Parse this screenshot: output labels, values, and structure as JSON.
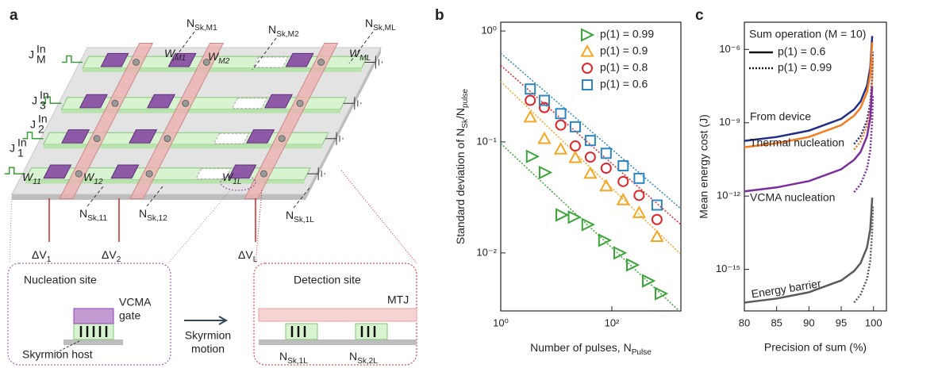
{
  "panel_labels": [
    "a",
    "b",
    "c"
  ],
  "diagram": {
    "top_labels": [
      [
        "N",
        "Sk,M1"
      ],
      [
        "N",
        "Sk,M2"
      ],
      [
        "N",
        "Sk,ML"
      ]
    ],
    "weights": [
      [
        "W",
        "M1"
      ],
      [
        "W",
        "M2"
      ],
      [
        "W",
        "ML"
      ],
      [
        "W",
        "11"
      ],
      [
        "W",
        "12"
      ],
      [
        "W",
        "1L"
      ]
    ],
    "inputs": [
      {
        "base": "J",
        "sub": "M",
        "sup": "In"
      },
      {
        "base": "J",
        "sub": "3",
        "sup": "In"
      },
      {
        "base": "J",
        "sub": "2",
        "sup": "In"
      },
      {
        "base": "J",
        "sub": "1",
        "sup": "In"
      }
    ],
    "bottom_labels": [
      [
        "N",
        "Sk,11"
      ],
      [
        "N",
        "Sk,12"
      ],
      [
        "N",
        "Sk,1L"
      ]
    ],
    "voltages": [
      [
        "ΔV",
        "1"
      ],
      [
        "ΔV",
        "2"
      ],
      [
        "ΔV",
        "L"
      ]
    ],
    "nucleation": {
      "title": "Nucleation site",
      "gate": [
        "VCMA",
        "gate"
      ],
      "host": "Skyrmion host"
    },
    "motion": [
      "Skyrmion",
      "motion"
    ],
    "detection": {
      "title": "Detection site",
      "mtj": "MTJ",
      "labels": [
        [
          "N",
          "Sk,1L"
        ],
        [
          "N",
          "Sk,2L"
        ]
      ]
    }
  },
  "chart_data": [
    {
      "type": "scatter",
      "xlabel": [
        "Number of pulses, N",
        "Pulse"
      ],
      "ylabel": [
        "Standard deviation of N",
        "Sk",
        "/N",
        "pulse"
      ],
      "log_x": true,
      "log_y": true,
      "xlim": [
        1,
        1750
      ],
      "ylim": [
        0.003,
        1.2
      ],
      "xticks": [
        {
          "value": 1,
          "label": "10⁰"
        },
        {
          "value": 100,
          "label": "10²"
        }
      ],
      "yticks": [
        {
          "value": 1,
          "label": "10⁰"
        },
        {
          "value": 0.1,
          "label": "10⁻¹"
        },
        {
          "value": 0.01,
          "label": "10⁻²"
        }
      ],
      "fit_x": [
        1,
        1750
      ],
      "series": [
        {
          "name": "p(1) = 0.99",
          "color": "#3aa538",
          "marker": "triangle-right",
          "x": [
            3.7,
            6.3,
            12.6,
            21,
            37,
            74,
            139,
            235,
            455,
            770
          ],
          "values": [
            0.074,
            0.053,
            0.022,
            0.021,
            0.018,
            0.013,
            0.01,
            0.0078,
            0.0056,
            0.0043
          ],
          "fit_values": [
            0.097,
            0.0029
          ]
        },
        {
          "name": "p(1) = 0.9",
          "color": "#f5a623",
          "marker": "triangle-up",
          "x": [
            3.4,
            6.1,
            12,
            22,
            41,
            79,
            160,
            310,
            650
          ],
          "values": [
            0.167,
            0.107,
            0.086,
            0.072,
            0.052,
            0.04,
            0.03,
            0.023,
            0.014
          ],
          "fit_values": [
            0.35,
            0.0097
          ]
        },
        {
          "name": "p(1) = 0.8",
          "color": "#e0252b",
          "marker": "circle",
          "x": [
            3.4,
            6.1,
            12,
            22,
            41,
            79,
            160,
            310,
            650
          ],
          "values": [
            0.237,
            0.204,
            0.142,
            0.092,
            0.073,
            0.058,
            0.044,
            0.033,
            0.02
          ],
          "fit_values": [
            0.49,
            0.018
          ]
        },
        {
          "name": "p(1) = 0.6",
          "color": "#2e86c1",
          "marker": "square",
          "x": [
            3.4,
            6.1,
            12,
            22,
            41,
            79,
            160,
            310,
            650
          ],
          "values": [
            0.3,
            0.237,
            0.18,
            0.137,
            0.103,
            0.079,
            0.061,
            0.047,
            0.027
          ],
          "fit_values": [
            0.63,
            0.025
          ]
        }
      ]
    },
    {
      "type": "line",
      "xlabel": "Precision of sum (%)",
      "ylabel": "Mean energy cost (J)",
      "log_y": true,
      "xlim": [
        80,
        102
      ],
      "ylim": [
        2e-17,
        1.3e-05
      ],
      "xticks": [
        80,
        85,
        90,
        95,
        100
      ],
      "yticks": [
        {
          "value": 1e-06,
          "label": "10⁻⁶"
        },
        {
          "value": 1e-09,
          "label": "10⁻⁹"
        },
        {
          "value": 1e-12,
          "label": "10⁻¹²"
        },
        {
          "value": 1e-15,
          "label": "10⁻¹⁵"
        }
      ],
      "legend": {
        "title": "Sum operation (M = 10)",
        "entries": [
          "p(1) = 0.6",
          "p(1) = 0.99"
        ]
      },
      "x": [
        80,
        85,
        90,
        95,
        97,
        98,
        99,
        99.5,
        99.8
      ],
      "x_dotted": [
        97,
        98,
        99,
        99.5,
        99.8,
        99.9
      ],
      "curves": [
        {
          "name": "From device",
          "color": "#1f2d86",
          "values": [
            1.81e-10,
            2.62e-10,
            4.76e-10,
            1.45e-09,
            3.53e-09,
            7.43e-09,
            3.28e-08,
            1.81e-07,
            3.53e-06
          ],
          "values_dotted": [
            1.35e-10,
            2.83e-10,
            1.25e-09,
            6.4e-09,
            8.6e-08,
            8e-07
          ]
        },
        {
          "name": "Thermal nucleation",
          "color": "#f47c20",
          "values": [
            1e-10,
            1.45e-10,
            2.62e-10,
            8e-10,
            1.95e-09,
            4.1e-09,
            1.81e-08,
            1e-07,
            1.95e-06
          ],
          "values_dotted": [
            8e-11,
            1.68e-10,
            7.43e-10,
            3.81e-09,
            5.13e-08,
            4.75e-07
          ]
        },
        {
          "name": "VCMA nucleation",
          "color": "#7b2d9e",
          "values": [
            1.56e-12,
            2.26e-12,
            4.1e-12,
            1.25e-11,
            3.05e-11,
            6.4e-11,
            2.83e-10,
            1.56e-09,
            3.05e-08
          ],
          "values_dotted": [
            1.45e-12,
            3.05e-12,
            1.35e-11,
            7.43e-11,
            1.25e-09,
            1.35e-08
          ]
        },
        {
          "name": "Energy barrier",
          "color": "#5a5a5a",
          "values": [
            4.4e-17,
            6.4e-17,
            1.16e-16,
            3.53e-16,
            8.6e-16,
            1.81e-15,
            8e-15,
            4.4e-14,
            8.6e-13
          ],
          "values_dotted": [
            4.4e-17,
            9.3e-17,
            4.1e-16,
            2.26e-15,
            3.81e-14,
            4.1e-13
          ]
        }
      ]
    }
  ]
}
